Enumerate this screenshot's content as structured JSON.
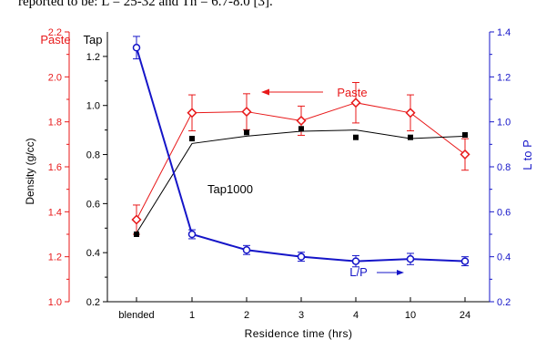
{
  "top_text": "reported to be: L = 25-32 and Th = 6.7-8.0 [3].",
  "colors": {
    "paste": "#e8191a",
    "tap": "#000000",
    "lp": "#1515c8"
  },
  "chart_data": {
    "type": "line",
    "categories": [
      "blended",
      "1",
      "2",
      "3",
      "4",
      "10",
      "24"
    ],
    "xlabel": "Residence time (hrs)",
    "axes": {
      "left_outer": {
        "label": "Density (g/cc)",
        "unit_label": "Paste",
        "range": [
          1.0,
          2.2
        ],
        "ticks": [
          "1.0",
          "1.2",
          "1.4",
          "1.6",
          "1.8",
          "2.0",
          "2.2"
        ],
        "color": "#e8191a"
      },
      "left_inner": {
        "unit_label": "Tap",
        "range": [
          0.2,
          1.3
        ],
        "ticks": [
          "0.2",
          "0.4",
          "0.6",
          "0.8",
          "1.0",
          "1.2"
        ],
        "color": "#000000"
      },
      "right": {
        "label": "L to P",
        "range": [
          0.2,
          1.4
        ],
        "ticks": [
          "0.2",
          "0.4",
          "0.6",
          "0.8",
          "1.0",
          "1.2",
          "1.4"
        ],
        "color": "#1515c8"
      }
    },
    "series": [
      {
        "name": "Paste",
        "axis": "left_outer",
        "marker": "diamond",
        "color": "#e8191a",
        "values": [
          1.365,
          1.84,
          1.845,
          1.805,
          1.885,
          1.84,
          1.655
        ],
        "err": [
          0.065,
          0.08,
          0.08,
          0.065,
          0.09,
          0.08,
          0.07
        ]
      },
      {
        "name": "Tap1000",
        "axis": "left_inner",
        "marker": "line",
        "color": "#000000",
        "values": [
          0.48,
          0.845,
          0.875,
          0.895,
          0.9,
          0.865,
          0.875
        ],
        "err": []
      },
      {
        "name": "Tap1000 points",
        "axis": "left_inner",
        "marker": "square",
        "color": "#000000",
        "values": [
          0.475,
          0.865,
          0.89,
          0.905,
          0.87,
          0.87,
          0.88
        ],
        "err": []
      },
      {
        "name": "L/P",
        "axis": "right",
        "marker": "circle",
        "color": "#1515c8",
        "values": [
          1.33,
          0.5,
          0.43,
          0.4,
          0.38,
          0.39,
          0.38
        ],
        "err": [
          0.05,
          0.02,
          0.02,
          0.02,
          0.025,
          0.025,
          0.02
        ]
      }
    ],
    "annotations": {
      "paste": "Paste",
      "tap": "Tap1000",
      "lp": "L/P"
    },
    "grid": false
  }
}
